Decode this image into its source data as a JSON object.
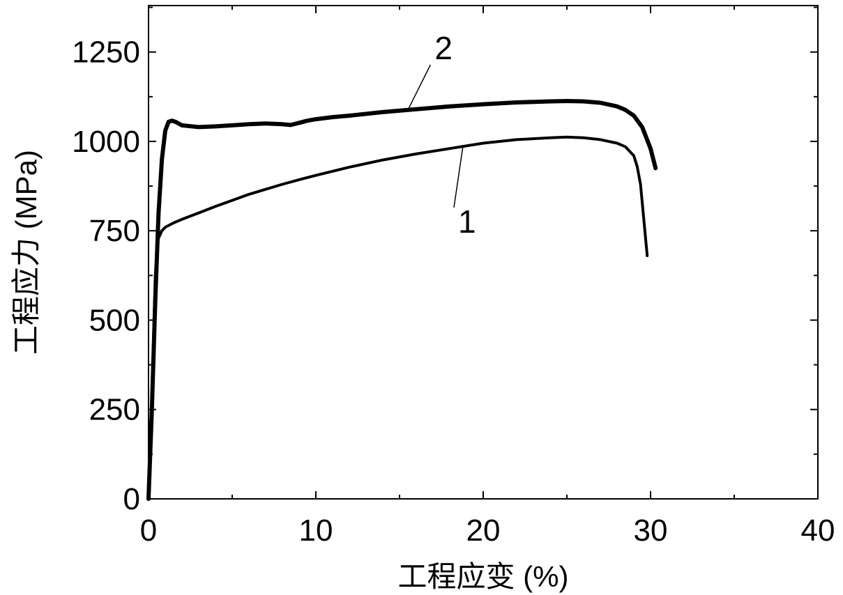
{
  "chart_data": {
    "type": "line",
    "title": "",
    "xlabel": "工程应变 (%)",
    "ylabel": "工程应力 (MPa)",
    "xlim": [
      0,
      40
    ],
    "ylim": [
      0,
      1380
    ],
    "xticks": [
      0,
      10,
      20,
      30,
      40
    ],
    "yticks": [
      0,
      250,
      500,
      750,
      1000,
      1250
    ],
    "grid": false,
    "legend": "none",
    "line_color": "#000000",
    "series": [
      {
        "name": "1",
        "stroke": 4,
        "x": [
          0,
          0.15,
          0.3,
          0.4,
          0.5,
          0.6,
          0.8,
          1.0,
          1.5,
          2,
          3,
          4,
          5,
          6,
          7,
          8,
          9,
          10,
          12,
          14,
          16,
          18,
          20,
          22,
          24,
          25,
          26,
          27,
          28,
          28.5,
          29,
          29.2,
          29.4,
          29.6,
          29.8
        ],
        "y": [
          0,
          200,
          450,
          620,
          700,
          730,
          750,
          760,
          772,
          782,
          800,
          818,
          835,
          852,
          866,
          880,
          893,
          905,
          928,
          948,
          965,
          980,
          995,
          1005,
          1010,
          1012,
          1010,
          1005,
          995,
          985,
          960,
          930,
          880,
          780,
          680
        ]
      },
      {
        "name": "2",
        "stroke": 6,
        "x": [
          0,
          0.2,
          0.4,
          0.6,
          0.8,
          1.0,
          1.2,
          1.4,
          1.6,
          2,
          3,
          4,
          5,
          6,
          7,
          8,
          8.5,
          9,
          9.5,
          10,
          11,
          12,
          14,
          16,
          18,
          20,
          22,
          24,
          25,
          26,
          27,
          28,
          28.5,
          29,
          29.5,
          30,
          30.3
        ],
        "y": [
          0,
          250,
          550,
          800,
          950,
          1030,
          1055,
          1058,
          1055,
          1045,
          1040,
          1042,
          1045,
          1048,
          1050,
          1048,
          1046,
          1052,
          1058,
          1062,
          1068,
          1072,
          1082,
          1090,
          1098,
          1104,
          1109,
          1112,
          1113,
          1112,
          1108,
          1098,
          1088,
          1072,
          1040,
          980,
          925
        ]
      }
    ],
    "annotations": [
      {
        "text": "1",
        "x": 18.8,
        "y": 990,
        "label_x": 18.5,
        "label_y": 745
      },
      {
        "text": "2",
        "x": 15.5,
        "y": 1088,
        "label_x": 17.1,
        "label_y": 1230
      }
    ]
  }
}
